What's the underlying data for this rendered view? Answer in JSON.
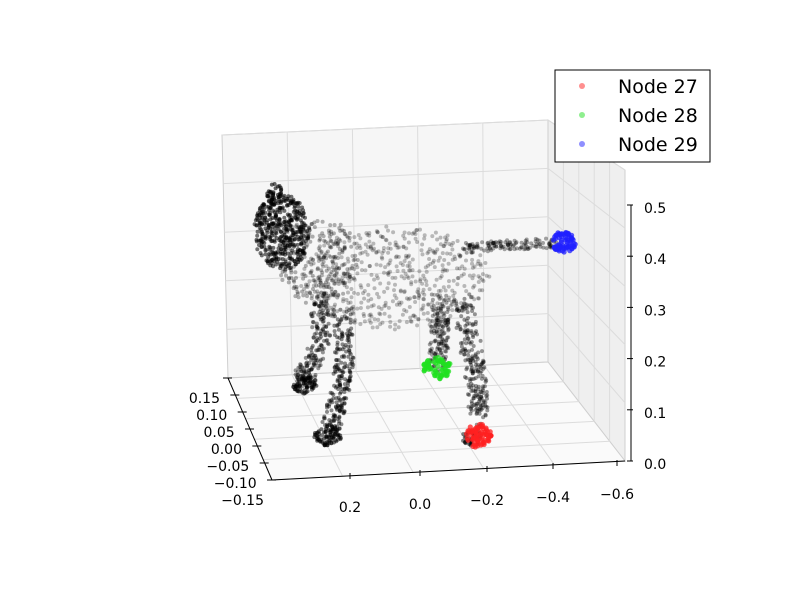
{
  "chart_data": {
    "type": "scatter",
    "projection": "3d",
    "title": "",
    "xlabel": "",
    "ylabel": "",
    "zlabel": "",
    "grid": true,
    "legend": {
      "placement": "top-right"
    },
    "x_axis_ticks": [
      "0.2",
      "0.0",
      "−0.2",
      "−0.4",
      "−0.6"
    ],
    "y_axis_ticks": [
      "0.15",
      "0.10",
      "0.05",
      "0.00",
      "−0.05",
      "−0.10",
      "−0.15"
    ],
    "z_axis_ticks": [
      "0.0",
      "0.1",
      "0.2",
      "0.3",
      "0.4",
      "0.5"
    ],
    "xlim": [
      0.3,
      -0.6
    ],
    "ylim": [
      -0.15,
      0.15
    ],
    "zlim": [
      0.0,
      0.5
    ],
    "background_points": {
      "color": "#000000",
      "alpha": 0.25
    },
    "series": [
      {
        "name": "Node 27",
        "color": "#ff2020"
      },
      {
        "name": "Node 28",
        "color": "#20e020"
      },
      {
        "name": "Node 29",
        "color": "#2020ff"
      }
    ]
  }
}
